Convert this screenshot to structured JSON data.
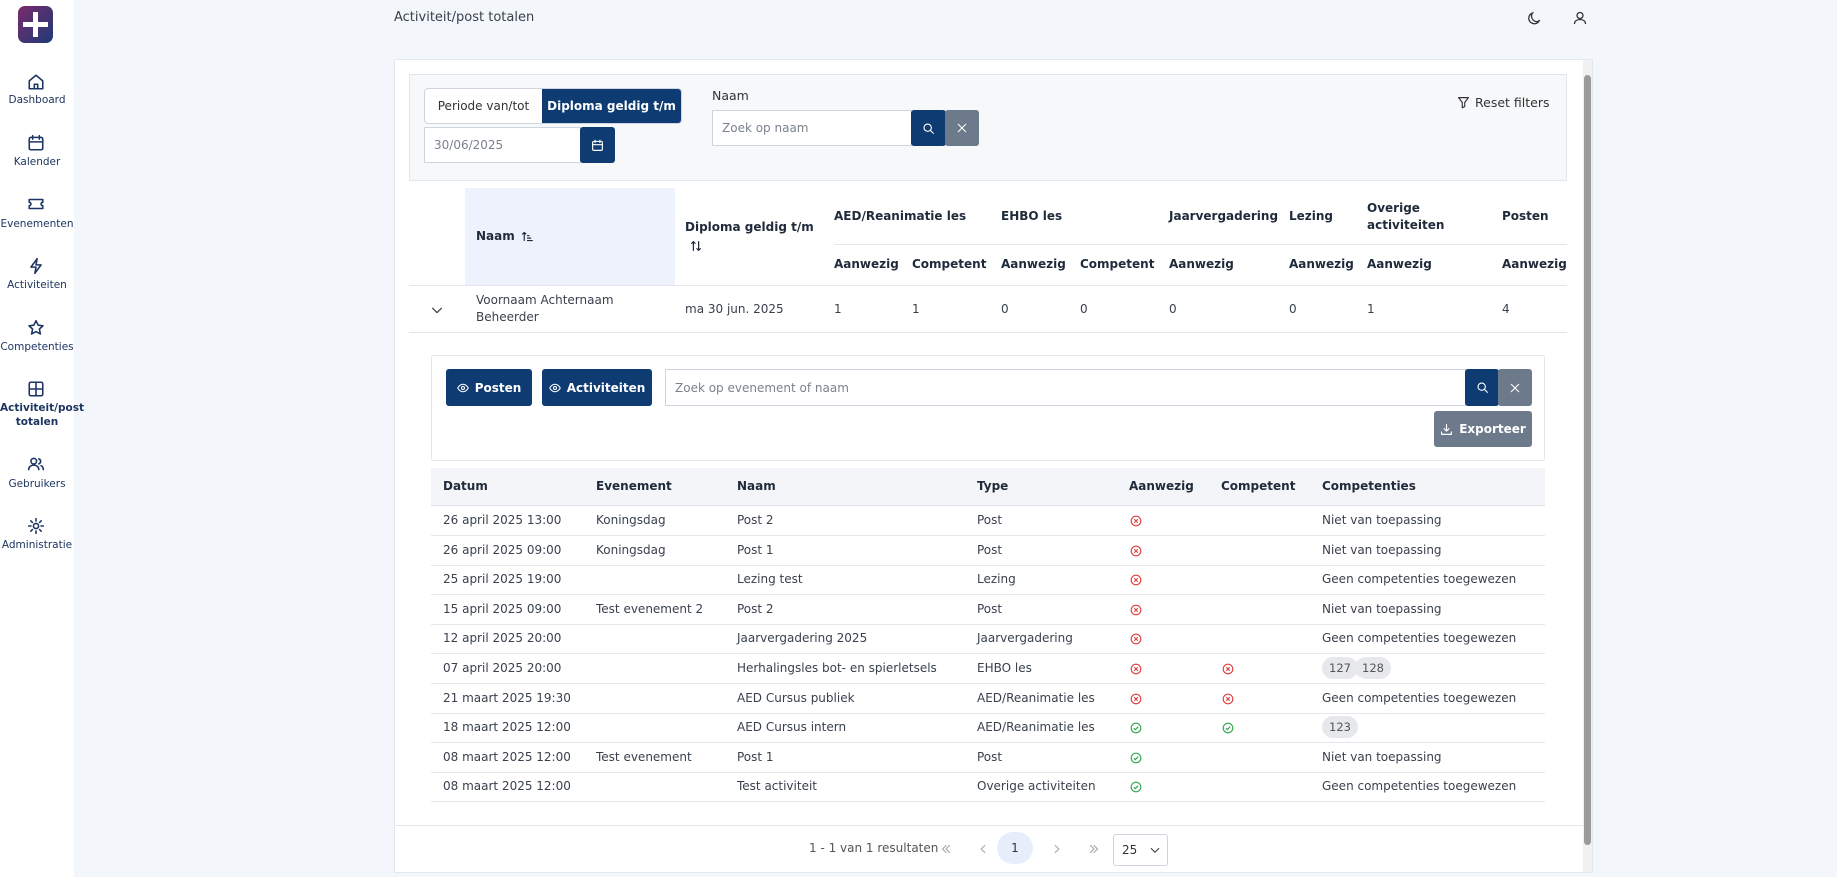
{
  "sidebar": {
    "items": [
      "Dashboard",
      "Kalender",
      "Evenementen",
      "Activiteiten",
      "Competenties",
      "Activiteit/post totalen",
      "Gebruikers",
      "Administratie"
    ],
    "active": 5
  },
  "header": {
    "title": "Activiteit/post totalen"
  },
  "filters": {
    "tabs": [
      "Periode van/tot",
      "Diploma geldig t/m"
    ],
    "active_tab": 1,
    "date": "30/06/2025",
    "name_label": "Naam",
    "name_placeholder": "Zoek op naam",
    "reset": "Reset filters"
  },
  "summary_table": {
    "name_header": "Naam",
    "date_header": "Diploma geldig t/m",
    "groups": [
      {
        "name": "AED/Reanimatie les",
        "columns": [
          "Aanwezig",
          "Competent"
        ]
      },
      {
        "name": "EHBO les",
        "columns": [
          "Aanwezig",
          "Competent"
        ]
      },
      {
        "name": "Jaarvergadering",
        "columns": [
          "Aanwezig"
        ]
      },
      {
        "name": "Lezing",
        "columns": [
          "Aanwezig"
        ]
      },
      {
        "name": "Overige activiteiten",
        "columns": [
          "Aanwezig"
        ]
      },
      {
        "name": "Posten",
        "columns": [
          "Aanwezig"
        ]
      }
    ],
    "rows": [
      {
        "name": "Voornaam Achternaam Beheerder",
        "date": "ma 30 jun. 2025",
        "values": [
          1,
          1,
          0,
          0,
          0,
          0,
          1,
          4
        ]
      }
    ]
  },
  "detail": {
    "buttons": [
      "Posten",
      "Activiteiten"
    ],
    "search_placeholder": "Zoek op evenement of naam",
    "export": "Exporteer",
    "columns": [
      "Datum",
      "Evenement",
      "Naam",
      "Type",
      "Aanwezig",
      "Competent",
      "Competenties"
    ],
    "rows": [
      [
        "26 april 2025 13:00",
        "Koningsdag",
        "Post 2",
        "Post",
        false,
        null,
        "Niet van toepassing"
      ],
      [
        "26 april 2025 09:00",
        "Koningsdag",
        "Post 1",
        "Post",
        false,
        null,
        "Niet van toepassing"
      ],
      [
        "25 april 2025 19:00",
        null,
        "Lezing test",
        "Lezing",
        false,
        null,
        "Geen competenties toegewezen"
      ],
      [
        "15 april 2025 09:00",
        "Test evenement 2",
        "Post 2",
        "Post",
        false,
        null,
        "Niet van toepassing"
      ],
      [
        "12 april 2025 20:00",
        null,
        "Jaarvergadering 2025",
        "Jaarvergadering",
        false,
        null,
        "Geen competenties toegewezen"
      ],
      [
        "07 april 2025 20:00",
        null,
        "Herhalingsles bot- en spierletsels",
        "EHBO les",
        false,
        false,
        [
          "127",
          "128"
        ]
      ],
      [
        "21 maart 2025 19:30",
        null,
        "AED Cursus publiek",
        "AED/Reanimatie les",
        false,
        false,
        "Geen competenties toegewezen"
      ],
      [
        "18 maart 2025 12:00",
        null,
        "AED Cursus intern",
        "AED/Reanimatie les",
        true,
        true,
        [
          "123"
        ]
      ],
      [
        "08 maart 2025 12:00",
        "Test evenement",
        "Post 1",
        "Post",
        true,
        null,
        "Niet van toepassing"
      ],
      [
        "08 maart 2025 12:00",
        null,
        "Test activiteit",
        "Overige activiteiten",
        true,
        null,
        "Geen competenties toegewezen"
      ]
    ]
  },
  "pagination": {
    "summary": "1 - 1 van 1 resultaten",
    "current": 1,
    "page_size": 25
  }
}
